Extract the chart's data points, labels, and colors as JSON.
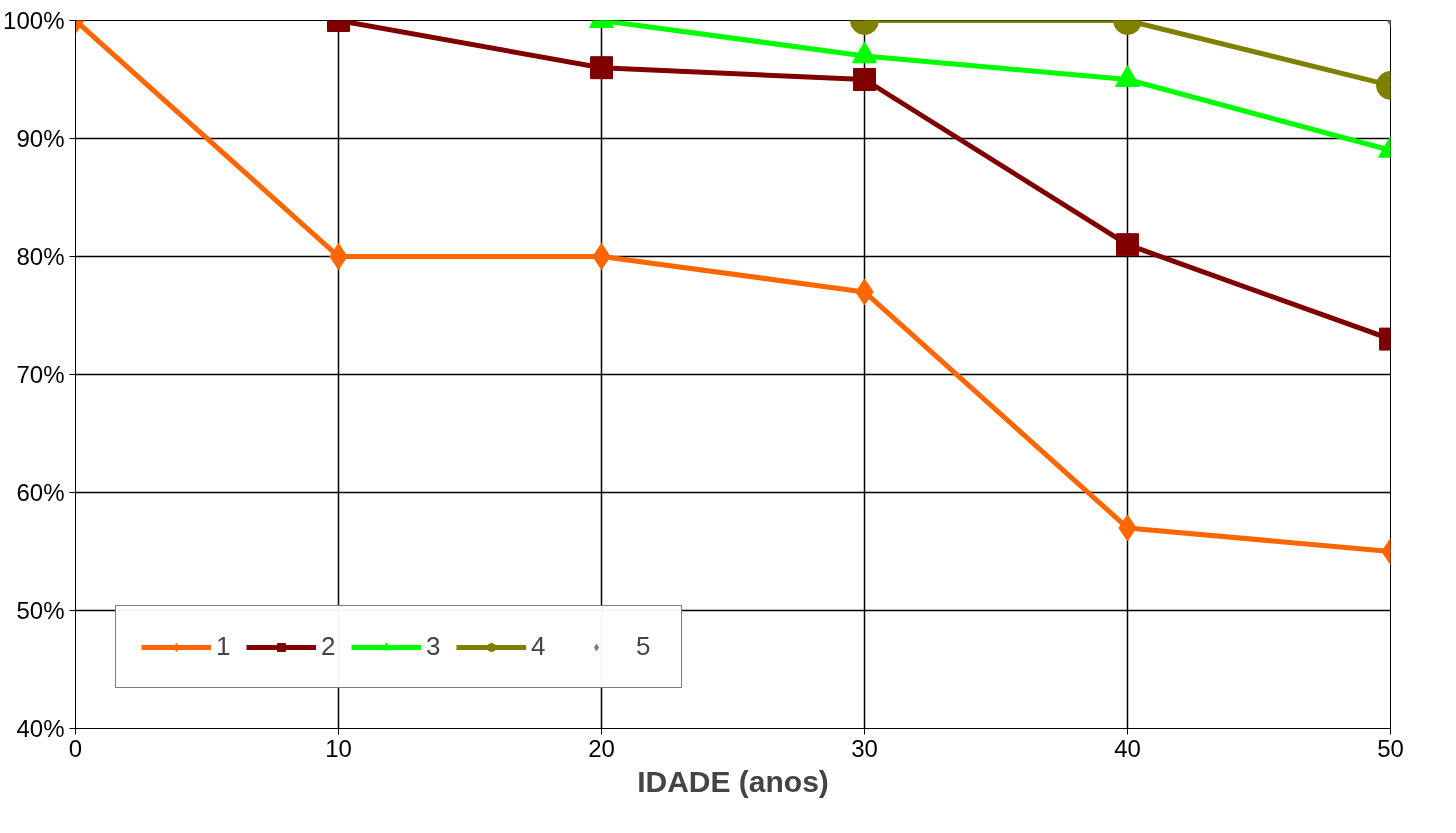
{
  "chart_data": {
    "type": "line",
    "xlabel": "IDADE (anos)",
    "xlim": [
      0,
      50
    ],
    "xticks": [
      0,
      10,
      20,
      30,
      40,
      50
    ],
    "ylim": [
      40,
      100
    ],
    "yticks": [
      {
        "value": 40,
        "label": "40%"
      },
      {
        "value": 50,
        "label": "50%"
      },
      {
        "value": 60,
        "label": "60%"
      },
      {
        "value": 70,
        "label": "70%"
      },
      {
        "value": 80,
        "label": "80%"
      },
      {
        "value": 90,
        "label": "90%"
      },
      {
        "value": 100,
        "label": "100%"
      }
    ],
    "grid": true,
    "legend": "bottom left",
    "series": [
      {
        "name": "1",
        "color": "#ff6600",
        "marker": "diamond",
        "x": [
          0,
          10,
          20,
          30,
          40,
          50
        ],
        "values": [
          100,
          80,
          80,
          77,
          57,
          55
        ]
      },
      {
        "name": "2",
        "color": "#800000",
        "marker": "square",
        "x": [
          10,
          20,
          30,
          40,
          50
        ],
        "values": [
          100,
          96,
          95,
          81,
          73
        ]
      },
      {
        "name": "3",
        "color": "#00ff00",
        "marker": "triangle",
        "x": [
          20,
          30,
          40,
          50
        ],
        "values": [
          100,
          97,
          95,
          89
        ]
      },
      {
        "name": "4",
        "color": "#808000",
        "marker": "circle",
        "x": [
          30,
          40,
          50
        ],
        "values": [
          100,
          100,
          94.5
        ]
      },
      {
        "name": "5",
        "type": "scatter",
        "color": "#808080",
        "marker": "diamond",
        "x": [
          50
        ],
        "values": [
          100
        ]
      }
    ]
  }
}
